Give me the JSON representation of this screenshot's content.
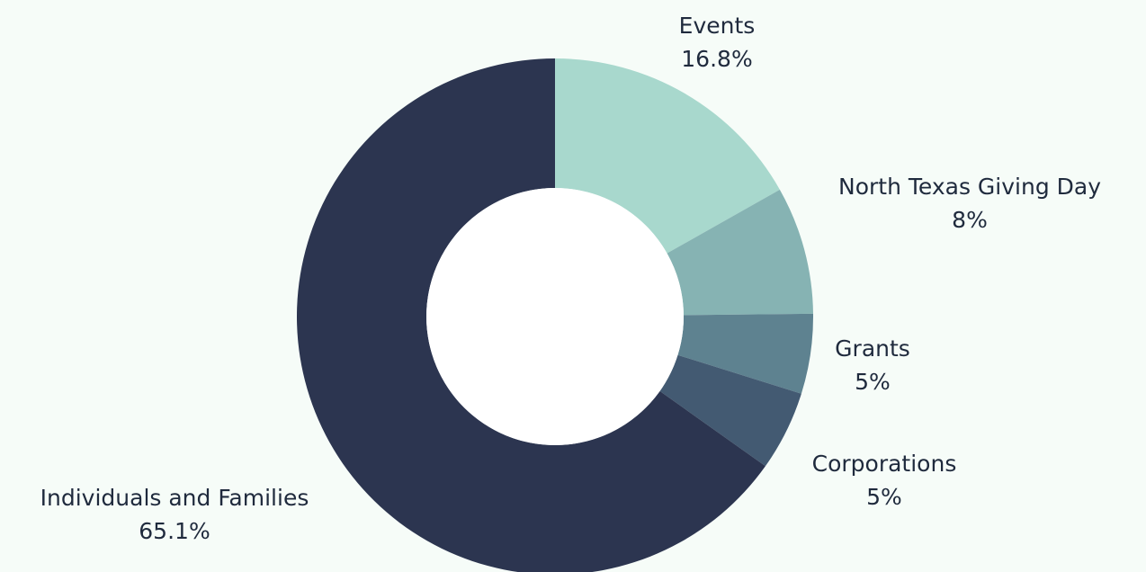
{
  "colors": {
    "background": "#f6fcf8",
    "label_text": "#1f2a3d"
  },
  "chart_data": {
    "type": "pie",
    "donut": true,
    "title": "",
    "legend": "none",
    "start_angle_deg": 0,
    "direction": "clockwise",
    "slices": [
      {
        "label": "Events",
        "value": 16.8,
        "value_label": "16.8%",
        "color": "#a8d8cd"
      },
      {
        "label": "North Texas Giving Day",
        "value": 8,
        "value_label": "8%",
        "color": "#86b3b3"
      },
      {
        "label": "Grants",
        "value": 5,
        "value_label": "5%",
        "color": "#5e8290"
      },
      {
        "label": "Corporations",
        "value": 5,
        "value_label": "5%",
        "color": "#435a72"
      },
      {
        "label": "Individuals and Families",
        "value": 65.1,
        "value_label": "65.1%",
        "color": "#2c3550"
      }
    ]
  }
}
